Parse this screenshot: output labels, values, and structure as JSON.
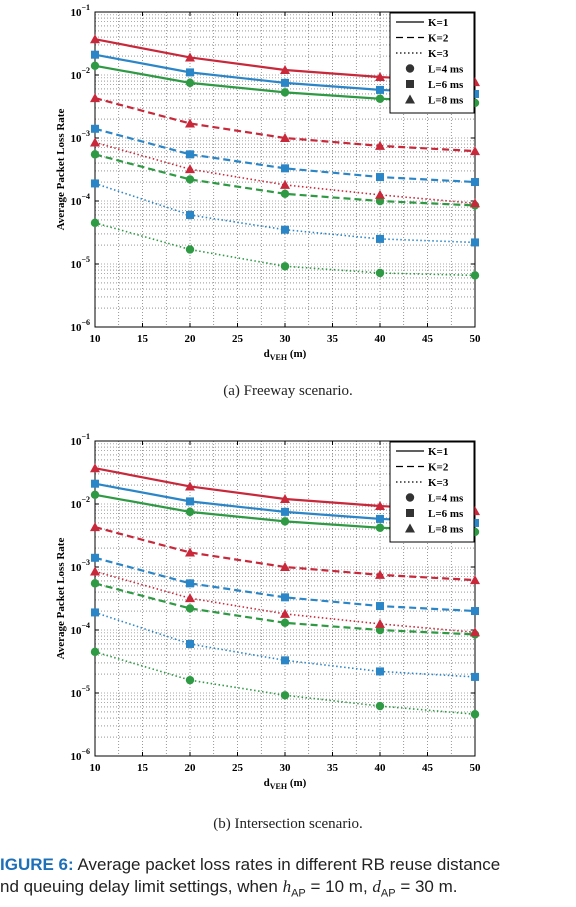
{
  "caption": {
    "label": "IGURE 6:",
    "line1": "Average packet loss rates in different RB reuse distance",
    "line2_a": "nd queuing delay limit settings, when",
    "h_sym": "h",
    "h_sub": "AP",
    "h_val": "= 10 m,",
    "d_sym": "d",
    "d_sub": "AP",
    "d_val": "= 30 m."
  },
  "colors": {
    "L4": "#2f9a44",
    "L6": "#2b86c8",
    "L8": "#c8283a"
  },
  "chart_data": [
    {
      "type": "line",
      "subtitle": "(a) Freeway scenario.",
      "xlabel": "d",
      "xlabel_sub": "VEH",
      "xlabel_unit": "(m)",
      "ylabel": "Average Packet Loss Rate",
      "y_scale": "log",
      "xlim": [
        10,
        50
      ],
      "ylim": [
        1e-06,
        0.1
      ],
      "xticks": [
        10,
        15,
        20,
        25,
        30,
        35,
        40,
        45,
        50
      ],
      "yticks": [
        {
          "base": "10",
          "exp": "−6",
          "v": -6
        },
        {
          "base": "10",
          "exp": "−5",
          "v": -5
        },
        {
          "base": "10",
          "exp": "−4",
          "v": -4
        },
        {
          "base": "10",
          "exp": "−3",
          "v": -3
        },
        {
          "base": "10",
          "exp": "−2",
          "v": -2
        },
        {
          "base": "10",
          "exp": "−1",
          "v": -1
        }
      ],
      "grid": true,
      "legend_position": "top-right",
      "legend": [
        "K=1",
        "K=2",
        "K=3",
        "L=4 ms",
        "L=6 ms",
        "L=8 ms"
      ],
      "x": [
        10,
        20,
        30,
        40,
        50
      ],
      "series": [
        {
          "K": 1,
          "L": 4,
          "values": [
            0.014,
            0.0075,
            0.0053,
            0.0042,
            0.0036
          ]
        },
        {
          "K": 1,
          "L": 6,
          "values": [
            0.021,
            0.011,
            0.0075,
            0.0058,
            0.005
          ]
        },
        {
          "K": 1,
          "L": 8,
          "values": [
            0.037,
            0.019,
            0.012,
            0.0093,
            0.0077
          ]
        },
        {
          "K": 2,
          "L": 4,
          "values": [
            0.00055,
            0.00022,
            0.00013,
            0.0001,
            8.5e-05
          ]
        },
        {
          "K": 2,
          "L": 6,
          "values": [
            0.0014,
            0.00055,
            0.00033,
            0.00024,
            0.0002
          ]
        },
        {
          "K": 2,
          "L": 8,
          "values": [
            0.0043,
            0.0017,
            0.001,
            0.00075,
            0.00062
          ]
        },
        {
          "K": 3,
          "L": 4,
          "values": [
            4.5e-05,
            1.7e-05,
            9.2e-06,
            7.2e-06,
            6.6e-06
          ]
        },
        {
          "K": 3,
          "L": 6,
          "values": [
            0.00019,
            6e-05,
            3.5e-05,
            2.5e-05,
            2.2e-05
          ]
        },
        {
          "K": 3,
          "L": 8,
          "values": [
            0.00085,
            0.00032,
            0.00018,
            0.000125,
            9.2e-05
          ]
        }
      ]
    },
    {
      "type": "line",
      "subtitle": "(b) Intersection scenario.",
      "xlabel": "d",
      "xlabel_sub": "VEH",
      "xlabel_unit": "(m)",
      "ylabel": "Average Packet Loss Rate",
      "y_scale": "log",
      "xlim": [
        10,
        50
      ],
      "ylim": [
        1e-06,
        0.1
      ],
      "xticks": [
        10,
        15,
        20,
        25,
        30,
        35,
        40,
        45,
        50
      ],
      "yticks": [
        {
          "base": "10",
          "exp": "−6",
          "v": -6
        },
        {
          "base": "10",
          "exp": "−5",
          "v": -5
        },
        {
          "base": "10",
          "exp": "−4",
          "v": -4
        },
        {
          "base": "10",
          "exp": "−3",
          "v": -3
        },
        {
          "base": "10",
          "exp": "−2",
          "v": -2
        },
        {
          "base": "10",
          "exp": "−1",
          "v": -1
        }
      ],
      "grid": true,
      "legend_position": "top-right",
      "legend": [
        "K=1",
        "K=2",
        "K=3",
        "L=4 ms",
        "L=6 ms",
        "L=8 ms"
      ],
      "x": [
        10,
        20,
        30,
        40,
        50
      ],
      "series": [
        {
          "K": 1,
          "L": 4,
          "values": [
            0.014,
            0.0075,
            0.0053,
            0.0042,
            0.0036
          ]
        },
        {
          "K": 1,
          "L": 6,
          "values": [
            0.021,
            0.011,
            0.0075,
            0.0058,
            0.005
          ]
        },
        {
          "K": 1,
          "L": 8,
          "values": [
            0.037,
            0.019,
            0.012,
            0.0093,
            0.0077
          ]
        },
        {
          "K": 2,
          "L": 4,
          "values": [
            0.00055,
            0.00022,
            0.00013,
            0.0001,
            8.5e-05
          ]
        },
        {
          "K": 2,
          "L": 6,
          "values": [
            0.0014,
            0.00055,
            0.00033,
            0.00024,
            0.0002
          ]
        },
        {
          "K": 2,
          "L": 8,
          "values": [
            0.0043,
            0.0017,
            0.001,
            0.00075,
            0.00062
          ]
        },
        {
          "K": 3,
          "L": 4,
          "values": [
            4.5e-05,
            1.6e-05,
            9.2e-06,
            6.2e-06,
            4.6e-06
          ]
        },
        {
          "K": 3,
          "L": 6,
          "values": [
            0.00019,
            6e-05,
            3.3e-05,
            2.2e-05,
            1.8e-05
          ]
        },
        {
          "K": 3,
          "L": 8,
          "values": [
            0.00085,
            0.00032,
            0.00018,
            0.000125,
            9.2e-05
          ]
        }
      ]
    }
  ]
}
